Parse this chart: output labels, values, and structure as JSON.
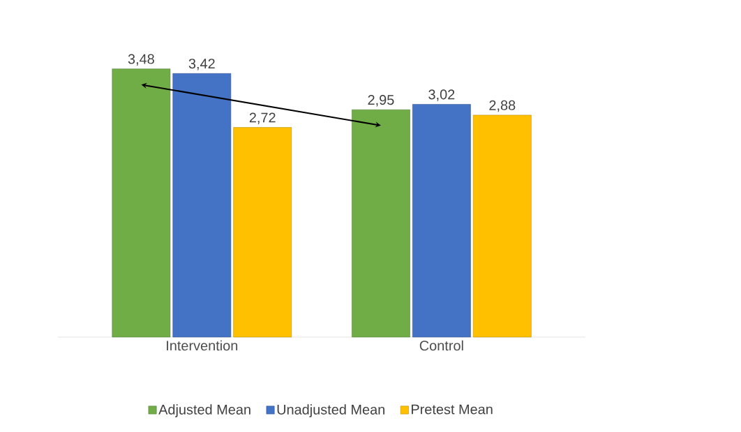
{
  "chart_data": {
    "type": "bar",
    "categories": [
      "Intervention",
      "Control"
    ],
    "series": [
      {
        "name": "Adjusted Mean",
        "color": "#70ad47",
        "values": [
          3.48,
          2.95
        ],
        "value_labels": [
          "3,48",
          "2,95"
        ]
      },
      {
        "name": "Unadjusted Mean",
        "color": "#4472c4",
        "values": [
          3.42,
          3.02
        ],
        "value_labels": [
          "3,42",
          "3,02"
        ]
      },
      {
        "name": "Pretest Mean",
        "color": "#ffc000",
        "values": [
          2.72,
          2.88
        ],
        "value_labels": [
          "2,72",
          "2,88"
        ]
      }
    ],
    "legend": "bottom"
  }
}
